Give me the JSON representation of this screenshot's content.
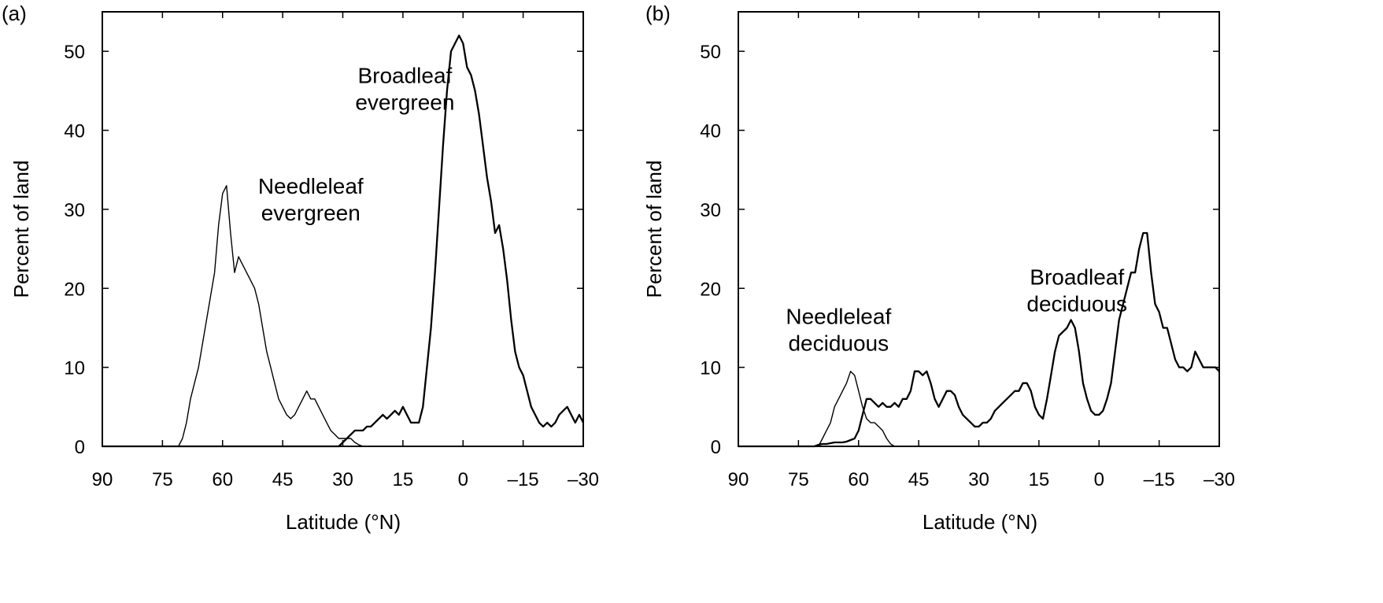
{
  "chart_data": [
    {
      "type": "line",
      "panel_label": "(a)",
      "xlabel": "Latitude (°N)",
      "ylabel": "Percent of land",
      "xlim": [
        90,
        -30
      ],
      "ylim": [
        0,
        55
      ],
      "xticks": [
        90,
        75,
        60,
        45,
        30,
        15,
        0,
        -15,
        -30
      ],
      "xtick_labels": [
        "90",
        "75",
        "60",
        "45",
        "30",
        "15",
        "0",
        "–15",
        "–30"
      ],
      "yticks": [
        0,
        10,
        20,
        30,
        40,
        50
      ],
      "ytick_labels": [
        "0",
        "10",
        "20",
        "30",
        "40",
        "50"
      ],
      "grid": false,
      "series": [
        {
          "name": "Needleleaf evergreen",
          "label_lines": [
            "Needleleaf",
            "evergreen"
          ],
          "stroke_width": 1.4,
          "x": [
            90,
            71,
            70,
            69,
            68,
            67,
            66,
            65,
            64,
            63,
            62,
            61,
            60,
            59,
            58,
            57,
            56,
            55,
            54,
            53,
            52,
            51,
            50,
            49,
            48,
            47,
            46,
            45,
            44,
            43,
            42,
            41,
            40,
            39,
            38,
            37,
            36,
            35,
            34,
            33,
            32,
            31,
            30,
            29,
            28,
            27,
            26,
            25,
            24,
            23,
            22,
            -30
          ],
          "y": [
            0,
            0,
            1,
            3,
            6,
            8,
            10,
            13,
            16,
            19,
            22,
            28,
            32,
            33,
            27,
            22,
            24,
            23,
            22,
            21,
            20,
            18,
            15,
            12,
            10,
            8,
            6,
            5,
            4,
            3.5,
            4,
            5,
            6,
            7,
            6,
            6,
            5,
            4,
            3,
            2,
            1.5,
            1,
            1,
            1,
            1,
            0.5,
            0.2,
            0,
            0,
            0,
            0,
            0
          ]
        },
        {
          "name": "Broadleaf evergreen",
          "label_lines": [
            "Broadleaf",
            "evergreen"
          ],
          "stroke_width": 2.3,
          "x": [
            90,
            31,
            30,
            29,
            28,
            27,
            26,
            25,
            24,
            23,
            22,
            21,
            20,
            19,
            18,
            17,
            16,
            15,
            14,
            13,
            12,
            11,
            10,
            9,
            8,
            7,
            6,
            5,
            4,
            3,
            2,
            1,
            0,
            -1,
            -2,
            -3,
            -4,
            -5,
            -6,
            -7,
            -8,
            -9,
            -10,
            -11,
            -12,
            -13,
            -14,
            -15,
            -16,
            -17,
            -18,
            -19,
            -20,
            -21,
            -22,
            -23,
            -24,
            -25,
            -26,
            -27,
            -28,
            -29,
            -30
          ],
          "y": [
            0,
            0,
            0.5,
            1,
            1.5,
            2,
            2,
            2,
            2.5,
            2.5,
            3,
            3.5,
            4,
            3.5,
            4,
            4.5,
            4,
            5,
            4,
            3,
            3,
            3,
            5,
            10,
            15,
            22,
            30,
            38,
            45,
            50,
            51,
            52,
            51,
            48,
            47,
            45,
            42,
            38,
            34,
            31,
            27,
            28,
            25,
            21,
            16,
            12,
            10,
            9,
            7,
            5,
            4,
            3,
            2.5,
            3,
            2.5,
            3,
            4,
            4.5,
            5,
            4,
            3,
            4,
            3
          ]
        }
      ],
      "annotations": [
        {
          "series": "Needleleaf evergreen",
          "lines": [
            "Needleleaf",
            "evergreen"
          ],
          "x": 38,
          "y": 32
        },
        {
          "series": "Broadleaf evergreen",
          "lines": [
            "Broadleaf",
            "evergreen"
          ],
          "x": 14.5,
          "y": 46
        }
      ]
    },
    {
      "type": "line",
      "panel_label": "(b)",
      "xlabel": "Latitude (°N)",
      "ylabel": "Percent of land",
      "xlim": [
        90,
        -30
      ],
      "ylim": [
        0,
        55
      ],
      "xticks": [
        90,
        75,
        60,
        45,
        30,
        15,
        0,
        -15,
        -30
      ],
      "xtick_labels": [
        "90",
        "75",
        "60",
        "45",
        "30",
        "15",
        "0",
        "–15",
        "–30"
      ],
      "yticks": [
        0,
        10,
        20,
        30,
        40,
        50
      ],
      "ytick_labels": [
        "0",
        "10",
        "20",
        "30",
        "40",
        "50"
      ],
      "grid": false,
      "series": [
        {
          "name": "Needleleaf deciduous",
          "label_lines": [
            "Needleleaf",
            "deciduous"
          ],
          "stroke_width": 1.4,
          "x": [
            90,
            70,
            69,
            68,
            67,
            66,
            65,
            64,
            63,
            62,
            61,
            60,
            59,
            58,
            57,
            56,
            55,
            54,
            53,
            52,
            51,
            -30
          ],
          "y": [
            0,
            0,
            1,
            2,
            3,
            5,
            6,
            7,
            8,
            9.5,
            9,
            7,
            5,
            3.5,
            3,
            3,
            2.5,
            2,
            1,
            0.3,
            0,
            0
          ]
        },
        {
          "name": "Broadleaf deciduous",
          "label_lines": [
            "Broadleaf",
            "deciduous"
          ],
          "stroke_width": 2.3,
          "x": [
            90,
            71,
            70,
            69,
            68,
            67,
            66,
            65,
            64,
            63,
            62,
            61,
            60,
            59,
            58,
            57,
            56,
            55,
            54,
            53,
            52,
            51,
            50,
            49,
            48,
            47,
            46,
            45,
            44,
            43,
            42,
            41,
            40,
            39,
            38,
            37,
            36,
            35,
            34,
            33,
            32,
            31,
            30,
            29,
            28,
            27,
            26,
            25,
            24,
            23,
            22,
            21,
            20,
            19,
            18,
            17,
            16,
            15,
            14,
            13,
            12,
            11,
            10,
            9,
            8,
            7,
            6,
            5,
            4,
            3,
            2,
            1,
            0,
            -1,
            -2,
            -3,
            -4,
            -5,
            -6,
            -7,
            -8,
            -9,
            -10,
            -11,
            -12,
            -13,
            -14,
            -15,
            -16,
            -17,
            -18,
            -19,
            -20,
            -21,
            -22,
            -23,
            -24,
            -25,
            -26,
            -27,
            -28,
            -29,
            -30
          ],
          "y": [
            0,
            0,
            0.2,
            0.3,
            0.3,
            0.4,
            0.5,
            0.5,
            0.5,
            0.6,
            0.8,
            1,
            2,
            4,
            6,
            6,
            5.5,
            5,
            5.5,
            5,
            5,
            5.5,
            5,
            6,
            6,
            7,
            9.5,
            9.5,
            9,
            9.5,
            8,
            6,
            5,
            6,
            7,
            7,
            6.5,
            5,
            4,
            3.5,
            3,
            2.5,
            2.5,
            3,
            3,
            3.5,
            4.5,
            5,
            5.5,
            6,
            6.5,
            7,
            7,
            8,
            8,
            7,
            5,
            4,
            3.5,
            6,
            9,
            12,
            14,
            14.5,
            15,
            16,
            15,
            12,
            8,
            6,
            4.5,
            4,
            4,
            4.5,
            6,
            8,
            12,
            16,
            18,
            20,
            22,
            22,
            25,
            27,
            27,
            22,
            18,
            17,
            15,
            15,
            13,
            11,
            10,
            10,
            9.5,
            10,
            12,
            11,
            10,
            10,
            10,
            10,
            9.5
          ]
        }
      ],
      "annotations": [
        {
          "series": "Needleleaf deciduous",
          "lines": [
            "Needleleaf",
            "deciduous"
          ],
          "x": 65,
          "y": 15.5
        },
        {
          "series": "Broadleaf deciduous",
          "lines": [
            "Broadleaf",
            "deciduous"
          ],
          "x": 5.5,
          "y": 20.5
        }
      ]
    }
  ]
}
